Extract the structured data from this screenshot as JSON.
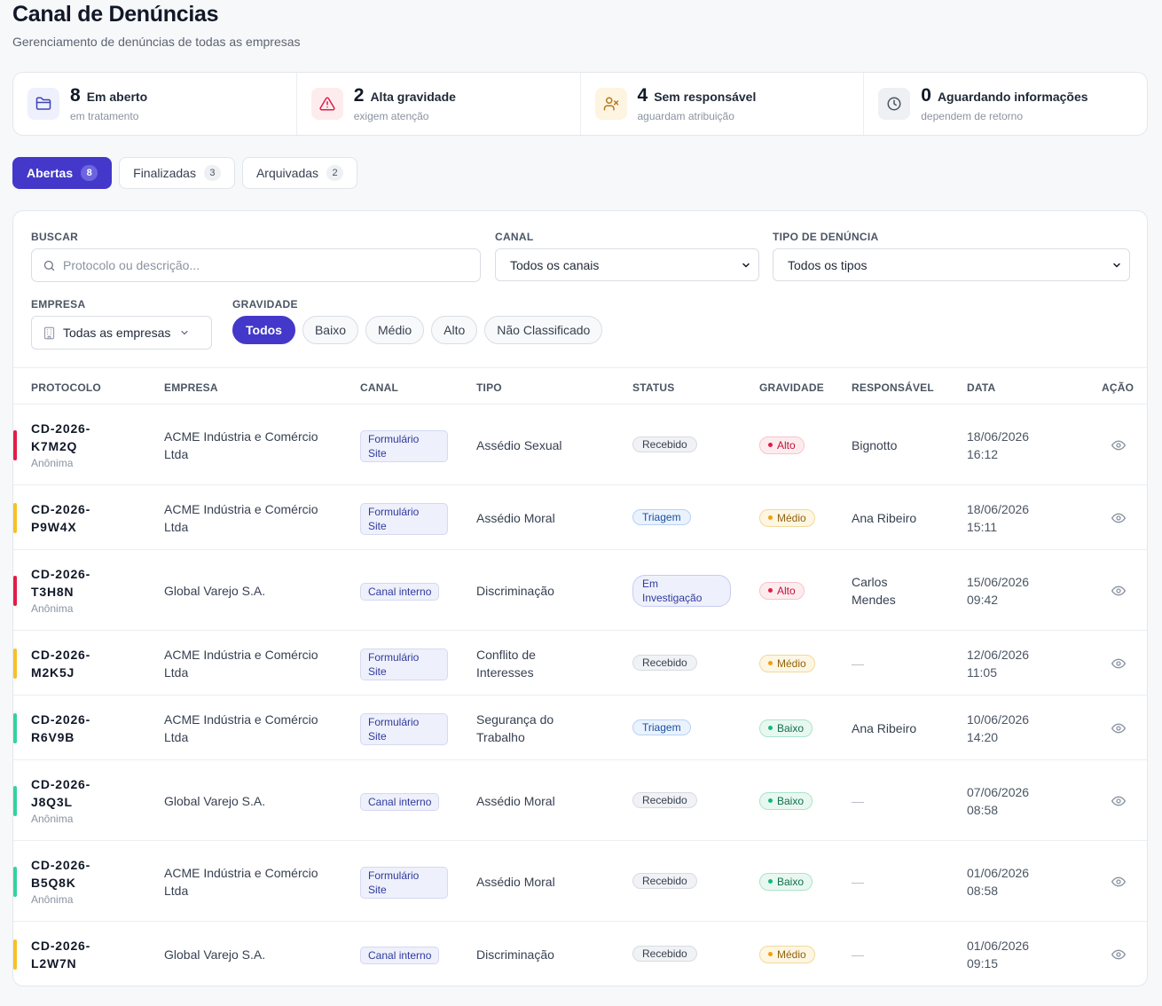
{
  "header": {
    "title": "Canal de Denúncias",
    "subtitle": "Gerenciamento de denúncias de todas as empresas"
  },
  "stats": [
    {
      "value": "8",
      "label": "Em aberto",
      "sub": "em tratamento",
      "icon": "folder-icon"
    },
    {
      "value": "2",
      "label": "Alta gravidade",
      "sub": "exigem atenção",
      "icon": "alert-triangle-icon"
    },
    {
      "value": "4",
      "label": "Sem responsável",
      "sub": "aguardam atribuição",
      "icon": "user-x-icon"
    },
    {
      "value": "0",
      "label": "Aguardando informações",
      "sub": "dependem de retorno",
      "icon": "clock-icon"
    }
  ],
  "tabs": [
    {
      "label": "Abertas",
      "count": "8",
      "active": true
    },
    {
      "label": "Finalizadas",
      "count": "3"
    },
    {
      "label": "Arquivadas",
      "count": "2"
    }
  ],
  "filters": {
    "search_label": "BUSCAR",
    "search_placeholder": "Protocolo ou descrição...",
    "canal_label": "CANAL",
    "canal_value": "Todos os canais",
    "tipo_label": "TIPO DE DENÚNCIA",
    "tipo_value": "Todos os tipos",
    "empresa_label": "EMPRESA",
    "empresa_value": "Todas as empresas",
    "gravidade_label": "GRAVIDADE",
    "gravidade_options": [
      "Todos",
      "Baixo",
      "Médio",
      "Alto",
      "Não Classificado"
    ]
  },
  "table": {
    "columns": [
      "PROTOCOLO",
      "EMPRESA",
      "CANAL",
      "TIPO",
      "STATUS",
      "GRAVIDADE",
      "RESPONSÁVEL",
      "DATA",
      "AÇÃO"
    ],
    "rows": [
      {
        "p1": "CD-2026-",
        "p2": "K7M2Q",
        "anon": "Anônima",
        "empresa": [
          "ACME Indústria e Comércio",
          "Ltda"
        ],
        "canal": [
          "Formulário",
          "Site"
        ],
        "tipo": [
          "Assédio Sexual"
        ],
        "status": [
          "Recebido"
        ],
        "grav": "Alto",
        "resp": [
          "Bignotto"
        ],
        "data": [
          "18/06/2026",
          "16:12"
        ]
      },
      {
        "p1": "CD-2026-",
        "p2": "P9W4X",
        "anon": "",
        "empresa": [
          "ACME Indústria e Comércio",
          "Ltda"
        ],
        "canal": [
          "Formulário",
          "Site"
        ],
        "tipo": [
          "Assédio Moral"
        ],
        "status": [
          "Triagem"
        ],
        "grav": "Médio",
        "resp": [
          "Ana Ribeiro"
        ],
        "data": [
          "18/06/2026",
          "15:11"
        ]
      },
      {
        "p1": "CD-2026-",
        "p2": "T3H8N",
        "anon": "Anônima",
        "empresa": [
          "Global Varejo S.A."
        ],
        "canal": [
          "Canal interno"
        ],
        "tipo": [
          "Discriminação"
        ],
        "status": [
          "Em",
          "Investigação"
        ],
        "grav": "Alto",
        "resp": [
          "Carlos",
          "Mendes"
        ],
        "data": [
          "15/06/2026",
          "09:42"
        ]
      },
      {
        "p1": "CD-2026-",
        "p2": "M2K5J",
        "anon": "",
        "empresa": [
          "ACME Indústria e Comércio",
          "Ltda"
        ],
        "canal": [
          "Formulário",
          "Site"
        ],
        "tipo": [
          "Conflito de",
          "Interesses"
        ],
        "status": [
          "Recebido"
        ],
        "grav": "Médio",
        "resp": [
          "—"
        ],
        "data": [
          "12/06/2026",
          "11:05"
        ]
      },
      {
        "p1": "CD-2026-",
        "p2": "R6V9B",
        "anon": "",
        "empresa": [
          "ACME Indústria e Comércio",
          "Ltda"
        ],
        "canal": [
          "Formulário",
          "Site"
        ],
        "tipo": [
          "Segurança do",
          "Trabalho"
        ],
        "status": [
          "Triagem"
        ],
        "grav": "Baixo",
        "resp": [
          "Ana Ribeiro"
        ],
        "data": [
          "10/06/2026",
          "14:20"
        ]
      },
      {
        "p1": "CD-2026-",
        "p2": "J8Q3L",
        "anon": "Anônima",
        "empresa": [
          "Global Varejo S.A."
        ],
        "canal": [
          "Canal interno"
        ],
        "tipo": [
          "Assédio Moral"
        ],
        "status": [
          "Recebido"
        ],
        "grav": "Baixo",
        "resp": [
          "—"
        ],
        "data": [
          "07/06/2026",
          "08:58"
        ]
      },
      {
        "p1": "CD-2026-",
        "p2": "B5Q8K",
        "anon": "Anônima",
        "empresa": [
          "ACME Indústria e Comércio",
          "Ltda"
        ],
        "canal": [
          "Formulário",
          "Site"
        ],
        "tipo": [
          "Assédio Moral"
        ],
        "status": [
          "Recebido"
        ],
        "grav": "Baixo",
        "resp": [
          "—"
        ],
        "data": [
          "01/06/2026",
          "08:58"
        ]
      },
      {
        "p1": "CD-2026-",
        "p2": "L2W7N",
        "anon": "",
        "empresa": [
          "Global Varejo S.A."
        ],
        "canal": [
          "Canal interno"
        ],
        "tipo": [
          "Discriminação"
        ],
        "status": [
          "Recebido"
        ],
        "grav": "Médio",
        "resp": [
          "—"
        ],
        "data": [
          "01/06/2026",
          "09:15"
        ]
      }
    ]
  },
  "colors": {
    "accent": "#4338ca",
    "alto": "#e11d48",
    "medio": "#f59e0b",
    "baixo": "#10b981"
  }
}
